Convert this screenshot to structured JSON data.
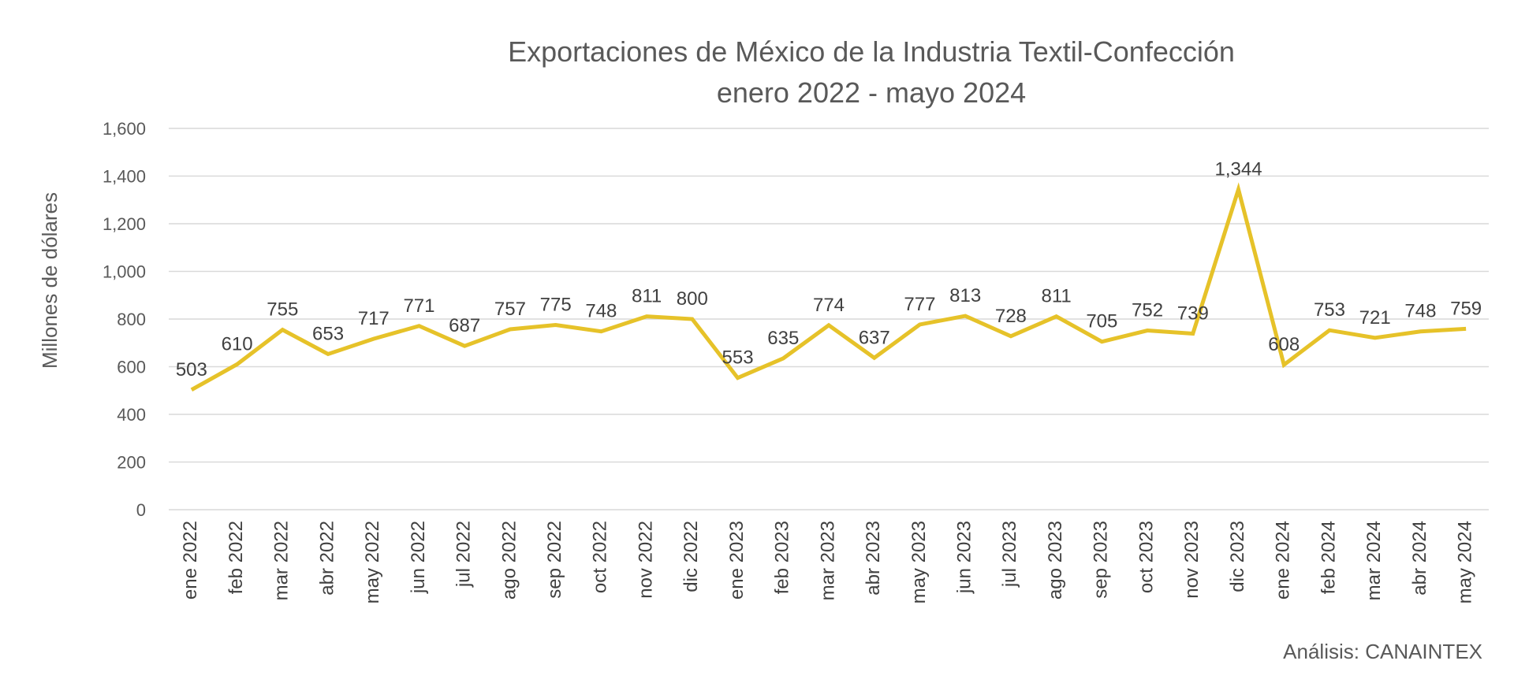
{
  "chart_data": {
    "type": "line",
    "title": "Exportaciones de México de la Industria Textil-Confección",
    "subtitle": "enero 2022 -  mayo 2024",
    "xlabel": "",
    "ylabel": "Millones de dólares",
    "ylim": [
      0,
      1600
    ],
    "yticks": [
      0,
      200,
      400,
      600,
      800,
      1000,
      1200,
      1400,
      1600
    ],
    "ytick_labels": [
      "0",
      "200",
      "400",
      "600",
      "800",
      "1,000",
      "1,200",
      "1,400",
      "1,600"
    ],
    "grid": true,
    "legend": "none",
    "line_color": "#E6C229",
    "categories": [
      "ene 2022",
      "feb 2022",
      "mar 2022",
      "abr 2022",
      "may 2022",
      "jun 2022",
      "jul 2022",
      "ago 2022",
      "sep 2022",
      "oct 2022",
      "nov 2022",
      "dic 2022",
      "ene 2023",
      "feb 2023",
      "mar 2023",
      "abr 2023",
      "may 2023",
      "jun 2023",
      "jul 2023",
      "ago 2023",
      "sep 2023",
      "oct 2023",
      "nov 2023",
      "dic 2023",
      "ene 2024",
      "feb 2024",
      "mar 2024",
      "abr 2024",
      "may 2024"
    ],
    "series": [
      {
        "values": [
          503,
          610,
          755,
          653,
          717,
          771,
          687,
          757,
          775,
          748,
          811,
          800,
          553,
          635,
          774,
          637,
          777,
          813,
          728,
          811,
          705,
          752,
          739,
          1344,
          608,
          753,
          721,
          748,
          759
        ],
        "labels": [
          "503",
          "610",
          "755",
          "653",
          "717",
          "771",
          "687",
          "757",
          "775",
          "748",
          "811",
          "800",
          "553",
          "635",
          "774",
          "637",
          "777",
          "813",
          "728",
          "811",
          "705",
          "752",
          "739",
          "1,344",
          "608",
          "753",
          "721",
          "748",
          "759"
        ]
      }
    ],
    "source": "Análisis: CANAINTEX"
  }
}
